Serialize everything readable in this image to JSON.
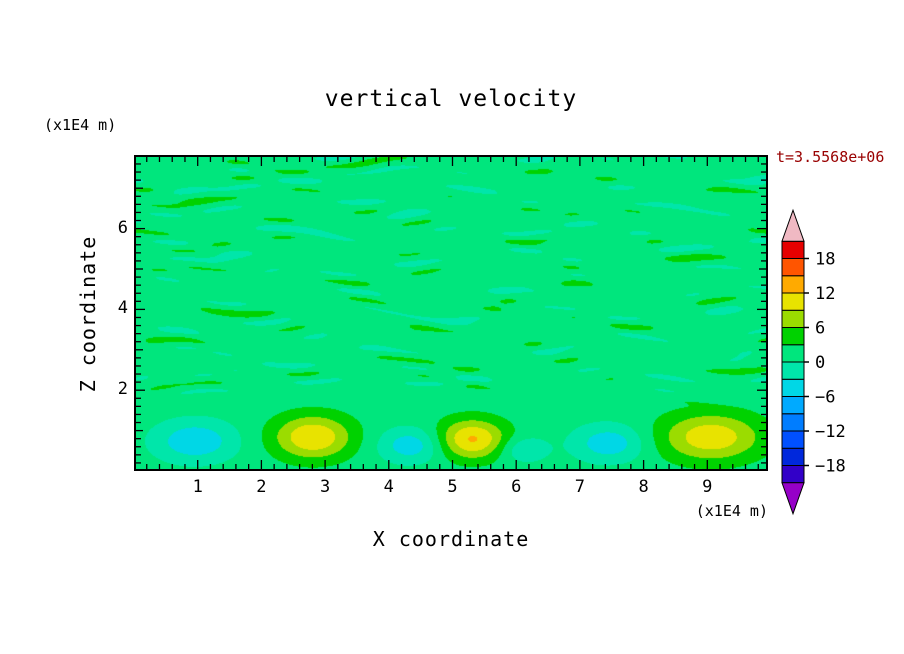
{
  "title": "vertical velocity",
  "time_label": {
    "text": "t=3.5568e+06",
    "color": "#990000"
  },
  "axes": {
    "x": {
      "label": "X coordinate",
      "unit": "(x1E4 m)",
      "min": 0,
      "max": 9.95,
      "major_tick_values": [
        1,
        2,
        3,
        4,
        5,
        6,
        7,
        8,
        9
      ],
      "minor_step": 0.2
    },
    "z": {
      "label": "Z coordinate",
      "unit": "(x1E4 m)",
      "min": 0,
      "max": 7.82,
      "major_tick_values": [
        2,
        4,
        6
      ],
      "medium_step": 1,
      "minor_step": 0.2
    }
  },
  "colorbar": {
    "min": -21,
    "max": 21,
    "interval": 3,
    "colors": [
      "#3200c8",
      "#0028dc",
      "#0050ff",
      "#007dff",
      "#00aaff",
      "#00d7e6",
      "#00e6aa",
      "#00e67d",
      "#00d200",
      "#9bdc00",
      "#e8e300",
      "#ffaa00",
      "#ff5500",
      "#e60000"
    ],
    "under_color": "#9600c8",
    "over_color": "#f0b9c3",
    "label_values": [
      18,
      12,
      6,
      0,
      -6,
      -12,
      -18
    ]
  },
  "chart_data": {
    "type": "heatmap",
    "title": "vertical velocity",
    "xlabel": "X coordinate (x1E4 m)",
    "ylabel": "Z coordinate (x1E4 m)",
    "time": "t=3.5568e+06",
    "x_range": [
      0,
      9.95
    ],
    "z_range": [
      0,
      7.82
    ],
    "contour_levels_range": [
      -21,
      21
    ],
    "contour_interval": 3,
    "legend_position": "right colorbar with over/under arrows",
    "description": "Filled contour field of vertical velocity. Interior (z>~1.6) is dominated by thin horizontal streaks alternating between ~0-3 (spring green) and ~3-6 (green), with occasional slightly negative patches. Near the lower boundary (z<~1.6) there is a row of alternating cells: updraft maxima reaching ~+12 (yellow cores at x~2.8, 5.3, 9.0) and downdraft minima reaching ~-7 (cyan cells at x~1.0, 4.3, 6.1, 7.4).",
    "field": {
      "base": 1.4,
      "streaks": {
        "z_start": 1.55,
        "z_ramp": 0.5,
        "amp": 2.3,
        "terms": [
          {
            "w": 0.65,
            "kz": 12.6,
            "warp": 2.4,
            "kx": 1.9,
            "c": 1.2,
            "ph": 0.0,
            "mx": 2.6,
            "mz": 5.3,
            "mp": 1.0
          },
          {
            "w": 0.55,
            "kz": 9.1,
            "warp": 2.0,
            "kx": 1.3,
            "c": -1.8,
            "ph": 2.0,
            "mx": 1.7,
            "mz": -4.2,
            "mp": 3.0
          },
          {
            "w": 0.33,
            "kz": 17.0,
            "warp": 1.5,
            "kx": 2.7,
            "c": 0.7,
            "ph": 4.0,
            "mx": 3.4,
            "mz": 2.0,
            "mp": 0.0
          }
        ]
      },
      "blobs": [
        {
          "x": 0.95,
          "z": 0.75,
          "sx": 0.62,
          "sz": 0.5,
          "a": -7.0
        },
        {
          "x": 2.8,
          "z": 0.85,
          "sx": 0.62,
          "sz": 0.55,
          "a": 10.5
        },
        {
          "x": 4.35,
          "z": 0.65,
          "sx": 0.5,
          "sz": 0.42,
          "a": -6.5
        },
        {
          "x": 5.3,
          "z": 0.8,
          "sx": 0.55,
          "sz": 0.5,
          "a": 11.0
        },
        {
          "x": 6.1,
          "z": 0.55,
          "sx": 0.38,
          "sz": 0.32,
          "a": -4.5
        },
        {
          "x": 7.45,
          "z": 0.7,
          "sx": 0.55,
          "sz": 0.45,
          "a": -6.5
        },
        {
          "x": 9.05,
          "z": 0.85,
          "sx": 0.8,
          "sz": 0.6,
          "a": 9.8
        }
      ]
    }
  }
}
